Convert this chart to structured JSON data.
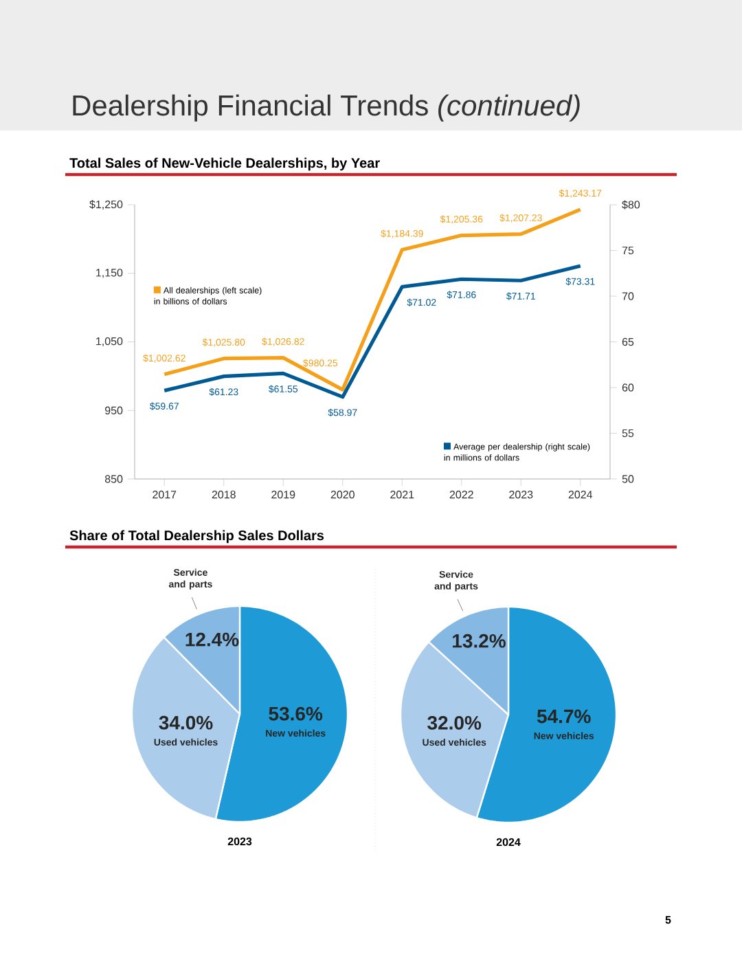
{
  "chart_data": [
    {
      "type": "line",
      "title": "Dealership Financial Trends *(continued)*",
      "subtitle": "Total Sales of New-Vehicle Dealerships, by Year",
      "x": [
        2017,
        2018,
        2019,
        2020,
        2021,
        2022,
        2023,
        2024
      ],
      "xlim": [
        2016.5,
        2024.5
      ],
      "xticks": [
        2017,
        2018,
        2019,
        2020,
        2021,
        2022,
        2023,
        2024
      ],
      "ylim": [
        850,
        1250
      ],
      "yticks": [
        850,
        950,
        {
          "value": 1050,
          "label": "1,050"
        },
        {
          "value": 1150,
          "label": "1,150"
        },
        {
          "value": 1250,
          "label": "$1,250"
        }
      ],
      "y2lim": [
        50,
        80
      ],
      "y2ticks": [
        50,
        55,
        60,
        65,
        70,
        75,
        {
          "value": 80,
          "label": "$80"
        }
      ],
      "legend": "left",
      "series": [
        {
          "name": "All dealerships (left scale) in billions of dollars",
          "color": "#f5a01a",
          "values": [
            1002.62,
            1025.8,
            1026.82,
            980.25,
            1184.39,
            1205.36,
            1207.23,
            1243.17
          ],
          "value_labels": [
            "$1,002.62",
            "$1,025.80",
            "$1,026.82",
            "$980.25",
            "$1,184.39",
            "$1,205.36",
            "$1,207.23",
            "$1,243.17"
          ]
        },
        {
          "name": "Average per dealership (right scale) in millions of dollars",
          "color": "#005b94",
          "axis": "y2",
          "values": [
            59.67,
            61.23,
            61.55,
            58.97,
            71.02,
            71.86,
            71.71,
            73.31
          ],
          "value_labels": [
            "$59.67",
            "$61.23",
            "$61.55",
            "$58.97",
            "$71.02",
            "$71.86",
            "$71.71",
            "$73.31"
          ]
        }
      ]
    },
    {
      "type": "pie",
      "title": "Share of Total Dealership Sales Dollars",
      "xlabel": "2023",
      "categories": [
        "New vehicles",
        "Used vehicles",
        "Service and parts"
      ],
      "values": [
        53.6,
        34.0,
        12.4
      ],
      "colors": [
        "#1e9ad6",
        "#abcdeb",
        "#85b8e3"
      ],
      "value_labels": [
        "53.6%",
        "34.0%",
        "12.4%"
      ]
    },
    {
      "type": "pie",
      "xlabel": "2024",
      "categories": [
        "New vehicles",
        "Used vehicles",
        "Service and parts"
      ],
      "values": [
        54.7,
        32.0,
        13.2
      ],
      "colors": [
        "#1e9ad6",
        "#abcdeb",
        "#85b8e3"
      ],
      "value_labels": [
        "54.7%",
        "32.0%",
        "13.2%"
      ],
      "annotations": [
        "5"
      ]
    }
  ]
}
